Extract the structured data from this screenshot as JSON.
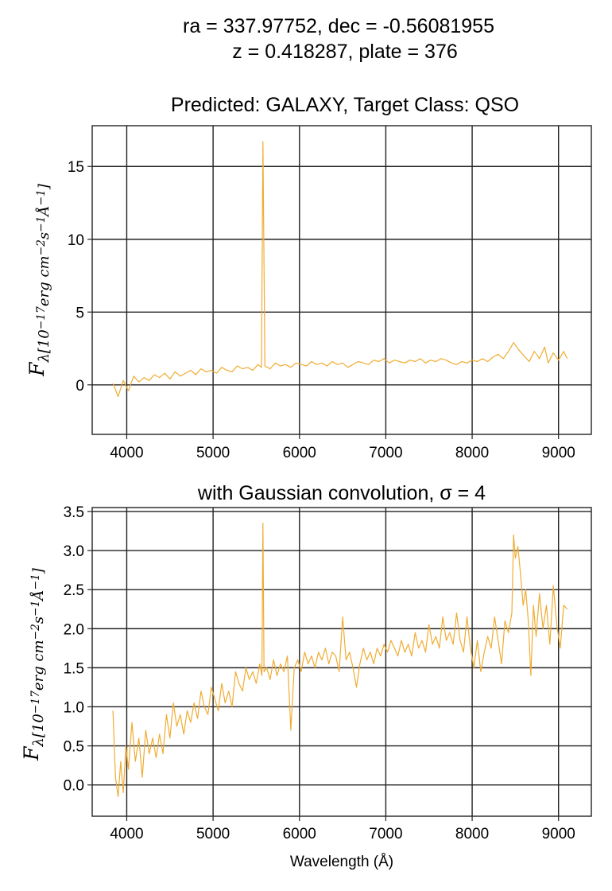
{
  "header": {
    "line1": "ra = 337.97752, dec = -0.56081955",
    "line2": "z = 0.418287, plate = 376"
  },
  "chart_data": [
    {
      "type": "line",
      "title": "Predicted: GALAXY, Target Class: QSO",
      "xlabel": "",
      "ylabel": "F_λ[10^-17 erg cm^-2 s^-1 Å^-1]",
      "xlim": [
        3600,
        9380
      ],
      "ylim": [
        -3.4,
        17.8
      ],
      "xticks": [
        4000,
        5000,
        6000,
        7000,
        8000,
        9000
      ],
      "yticks": [
        0,
        5,
        10,
        15
      ],
      "grid": true,
      "line_color": "#f0ac33",
      "series": [
        {
          "x": [
            3840,
            3900,
            3960,
            4020,
            4080,
            4140,
            4200,
            4260,
            4320,
            4380,
            4440,
            4500,
            4560,
            4620,
            4680,
            4740,
            4800,
            4860,
            4920,
            4980,
            5040,
            5100,
            5160,
            5220,
            5280,
            5340,
            5400,
            5460,
            5520,
            5560,
            5577,
            5600,
            5660,
            5720,
            5780,
            5840,
            5900,
            5960,
            6020,
            6080,
            6140,
            6200,
            6260,
            6320,
            6380,
            6440,
            6500,
            6560,
            6620,
            6680,
            6740,
            6800,
            6860,
            6920,
            6980,
            7040,
            7100,
            7160,
            7220,
            7280,
            7340,
            7400,
            7460,
            7520,
            7580,
            7640,
            7700,
            7760,
            7820,
            7880,
            7940,
            8000,
            8060,
            8120,
            8180,
            8240,
            8300,
            8360,
            8420,
            8480,
            8540,
            8600,
            8660,
            8720,
            8780,
            8840,
            8880,
            8940,
            9000,
            9060,
            9100
          ],
          "y": [
            0.1,
            -0.8,
            0.3,
            -0.4,
            0.6,
            0.2,
            0.5,
            0.3,
            0.7,
            0.5,
            0.8,
            0.4,
            0.9,
            0.6,
            0.8,
            1.0,
            0.7,
            1.1,
            0.9,
            1.0,
            0.8,
            1.2,
            1.0,
            0.9,
            1.3,
            1.1,
            1.2,
            1.0,
            1.4,
            1.2,
            16.7,
            1.3,
            1.1,
            1.5,
            1.3,
            1.4,
            1.2,
            1.5,
            1.4,
            1.3,
            1.6,
            1.4,
            1.5,
            1.3,
            1.6,
            1.4,
            1.5,
            1.2,
            1.4,
            1.6,
            1.5,
            1.4,
            1.7,
            1.6,
            1.8,
            1.5,
            1.7,
            1.6,
            1.5,
            1.7,
            1.6,
            1.8,
            1.5,
            1.7,
            1.6,
            1.8,
            1.7,
            1.5,
            1.4,
            1.6,
            1.5,
            1.7,
            1.6,
            1.8,
            1.6,
            1.9,
            2.1,
            1.8,
            2.3,
            2.9,
            2.4,
            2.0,
            1.6,
            2.3,
            1.8,
            2.6,
            1.5,
            2.2,
            1.7,
            2.3,
            1.8
          ]
        }
      ]
    },
    {
      "type": "line",
      "title": "with Gaussian convolution, σ = 4",
      "xlabel": "Wavelength (Å)",
      "ylabel": "F_λ[10^-17 erg cm^-2 s^-1 Å^-1]",
      "xlim": [
        3600,
        9380
      ],
      "ylim": [
        -0.4,
        3.55
      ],
      "xticks": [
        4000,
        5000,
        6000,
        7000,
        8000,
        9000
      ],
      "yticks": [
        0.0,
        0.5,
        1.0,
        1.5,
        2.0,
        2.5,
        3.0,
        3.5
      ],
      "grid": true,
      "line_color": "#f0ac33",
      "series": [
        {
          "x": [
            3840,
            3870,
            3900,
            3930,
            3960,
            3990,
            4020,
            4060,
            4100,
            4140,
            4180,
            4220,
            4260,
            4300,
            4340,
            4380,
            4420,
            4460,
            4500,
            4540,
            4580,
            4620,
            4660,
            4700,
            4740,
            4780,
            4820,
            4860,
            4900,
            4940,
            4980,
            5020,
            5060,
            5100,
            5140,
            5180,
            5220,
            5260,
            5300,
            5340,
            5380,
            5420,
            5460,
            5500,
            5540,
            5565,
            5577,
            5590,
            5620,
            5660,
            5700,
            5740,
            5780,
            5820,
            5860,
            5900,
            5940,
            5980,
            6020,
            6060,
            6100,
            6140,
            6180,
            6220,
            6260,
            6300,
            6340,
            6380,
            6420,
            6460,
            6500,
            6540,
            6580,
            6620,
            6660,
            6700,
            6740,
            6780,
            6820,
            6860,
            6900,
            6940,
            6980,
            7020,
            7060,
            7100,
            7140,
            7180,
            7220,
            7260,
            7300,
            7340,
            7380,
            7420,
            7460,
            7500,
            7540,
            7580,
            7620,
            7660,
            7700,
            7740,
            7780,
            7820,
            7860,
            7900,
            7940,
            7980,
            8020,
            8060,
            8100,
            8140,
            8180,
            8220,
            8260,
            8300,
            8340,
            8380,
            8420,
            8460,
            8480,
            8500,
            8530,
            8560,
            8590,
            8620,
            8650,
            8680,
            8710,
            8740,
            8780,
            8820,
            8860,
            8900,
            8940,
            8980,
            9020,
            9060,
            9100
          ],
          "y": [
            0.95,
            0.1,
            -0.15,
            0.3,
            -0.1,
            0.5,
            0.2,
            0.8,
            0.3,
            0.6,
            0.1,
            0.7,
            0.4,
            0.6,
            0.35,
            0.65,
            0.4,
            0.9,
            0.6,
            1.05,
            0.75,
            0.9,
            0.65,
            0.95,
            0.8,
            1.05,
            0.85,
            1.2,
            1.0,
            0.9,
            1.25,
            1.1,
            0.95,
            1.3,
            1.05,
            1.2,
            1.0,
            1.45,
            1.3,
            1.2,
            1.5,
            1.35,
            1.45,
            1.3,
            1.55,
            1.4,
            3.35,
            1.45,
            1.5,
            1.35,
            1.6,
            1.4,
            1.55,
            1.45,
            1.65,
            0.7,
            1.5,
            1.6,
            1.45,
            1.7,
            1.55,
            1.65,
            1.5,
            1.7,
            1.6,
            1.75,
            1.55,
            1.7,
            1.65,
            1.45,
            2.15,
            1.6,
            1.7,
            1.5,
            1.25,
            1.55,
            1.75,
            1.6,
            1.7,
            1.55,
            1.75,
            1.65,
            1.8,
            1.7,
            1.85,
            1.75,
            1.65,
            1.85,
            1.7,
            1.8,
            1.65,
            1.95,
            1.75,
            1.85,
            1.7,
            2.05,
            1.8,
            1.9,
            1.75,
            2.15,
            1.85,
            1.95,
            1.8,
            2.2,
            1.85,
            1.7,
            2.15,
            1.75,
            1.5,
            1.85,
            1.45,
            1.7,
            1.9,
            1.75,
            2.15,
            1.85,
            1.55,
            2.1,
            1.95,
            2.2,
            3.2,
            2.9,
            3.05,
            2.7,
            2.3,
            2.5,
            2.1,
            1.4,
            2.3,
            1.9,
            2.45,
            2.0,
            2.3,
            1.8,
            2.55,
            2.05,
            1.75,
            2.3,
            2.25
          ]
        }
      ]
    }
  ]
}
